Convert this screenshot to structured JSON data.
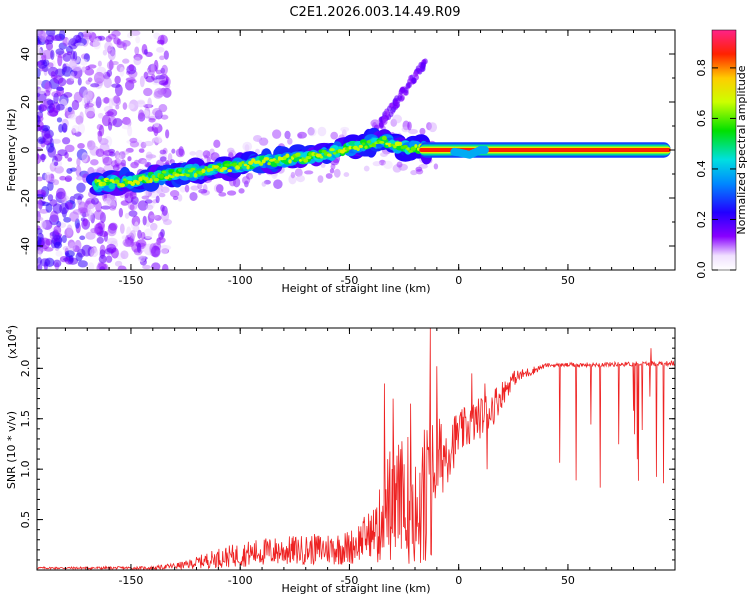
{
  "title": "C2E1.2026.003.14.49.R09",
  "chart_data": [
    {
      "type": "heatmap",
      "xlabel": "Height of straight line (km)",
      "ylabel": "Frequency (Hz)",
      "xlim": [
        -193,
        99
      ],
      "ylim": [
        -50,
        50
      ],
      "xticks": [
        -150,
        -100,
        -50,
        0,
        50
      ],
      "yticks": [
        -40,
        -20,
        0,
        20,
        40
      ],
      "ridge": [
        {
          "x": -165,
          "y": -14
        },
        {
          "x": -150,
          "y": -13
        },
        {
          "x": -130,
          "y": -10
        },
        {
          "x": -110,
          "y": -8
        },
        {
          "x": -90,
          "y": -5
        },
        {
          "x": -70,
          "y": -3
        },
        {
          "x": -50,
          "y": 1
        },
        {
          "x": -35,
          "y": 4
        },
        {
          "x": -25,
          "y": 1
        },
        {
          "x": -15,
          "y": 0.5
        },
        {
          "x": 0,
          "y": -1
        },
        {
          "x": 5,
          "y": -2
        },
        {
          "x": 10,
          "y": 0
        },
        {
          "x": 50,
          "y": 0
        },
        {
          "x": 97,
          "y": 0
        }
      ],
      "colorbar": {
        "label": "Normalized spectral amplitude",
        "range": [
          0,
          0.95
        ],
        "ticks": [
          "0.0",
          "0.2",
          "0.4",
          "0.6",
          "0.8"
        ],
        "tick_values": [
          0,
          0.2,
          0.4,
          0.6,
          0.8
        ]
      }
    },
    {
      "type": "line",
      "xlabel": "Height of straight line (km)",
      "ylabel": "SNR (10 * v/v)",
      "yscale_label": "(x10",
      "yscale_exp": "4",
      "yscale_close": ")",
      "xlim": [
        -193,
        99
      ],
      "ylim": [
        0,
        2.4
      ],
      "xticks": [
        -150,
        -100,
        -50,
        0,
        50
      ],
      "yticks": [
        "0.5",
        "1.0",
        "1.5",
        "2.0"
      ],
      "ytick_values": [
        0.5,
        1.0,
        1.5,
        2.0
      ],
      "series": [
        {
          "name": "SNR",
          "color": "#ee2222",
          "envelope": [
            {
              "x": -193,
              "base": 0.02,
              "spread": 0.02
            },
            {
              "x": -140,
              "base": 0.02,
              "spread": 0.03
            },
            {
              "x": -125,
              "base": 0.05,
              "spread": 0.08
            },
            {
              "x": -110,
              "base": 0.12,
              "spread": 0.2
            },
            {
              "x": -90,
              "base": 0.18,
              "spread": 0.28
            },
            {
              "x": -70,
              "base": 0.2,
              "spread": 0.3
            },
            {
              "x": -50,
              "base": 0.22,
              "spread": 0.35
            },
            {
              "x": -38,
              "base": 0.4,
              "spread": 0.5
            },
            {
              "x": -32,
              "base": 0.7,
              "spread": 1.0
            },
            {
              "x": -20,
              "base": 0.8,
              "spread": 1.2
            },
            {
              "x": -12,
              "base": 1.0,
              "spread": 1.0
            },
            {
              "x": 0,
              "base": 1.35,
              "spread": 0.45
            },
            {
              "x": 15,
              "base": 1.6,
              "spread": 0.4
            },
            {
              "x": 25,
              "base": 1.9,
              "spread": 0.15
            },
            {
              "x": 40,
              "base": 2.03,
              "spread": 0.04
            },
            {
              "x": 99,
              "base": 2.05,
              "spread": 0.05
            }
          ],
          "spikes": [
            {
              "x": -13,
              "y": 2.4
            },
            {
              "x": -10,
              "y": 2.02
            },
            {
              "x": -34,
              "y": 1.85
            },
            {
              "x": -30,
              "y": 1.7
            },
            {
              "x": -22,
              "y": 1.65
            },
            {
              "x": 6,
              "y": 1.95
            },
            {
              "x": 12,
              "y": 1.85
            },
            {
              "x": -36,
              "y": 0.1
            },
            {
              "x": -16,
              "y": 0.1
            },
            {
              "x": 13,
              "y": 1.0
            },
            {
              "x": 88,
              "y": 2.2
            }
          ],
          "dips_range": [
            45,
            99
          ],
          "dips_min": 0.8
        }
      ]
    }
  ]
}
